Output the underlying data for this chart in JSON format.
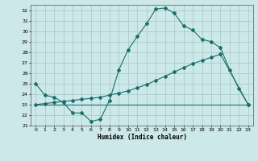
{
  "bg_color": "#cce8e8",
  "grid_color": "#aacccc",
  "line_color": "#1a6e6e",
  "x_label": "Humidex (Indice chaleur)",
  "ylim": [
    21,
    32.5
  ],
  "xlim": [
    -0.5,
    23.5
  ],
  "yticks": [
    21,
    22,
    23,
    24,
    25,
    26,
    27,
    28,
    29,
    30,
    31,
    32
  ],
  "xticks": [
    0,
    1,
    2,
    3,
    4,
    5,
    6,
    7,
    8,
    9,
    10,
    11,
    12,
    13,
    14,
    15,
    16,
    17,
    18,
    19,
    20,
    21,
    22,
    23
  ],
  "curve1_x": [
    0,
    1,
    2,
    3,
    4,
    5,
    6,
    7,
    8,
    9,
    10,
    11,
    12,
    13,
    14,
    15,
    16,
    17,
    18,
    19,
    20,
    21,
    22,
    23
  ],
  "curve1_y": [
    25.0,
    23.9,
    23.7,
    23.2,
    22.2,
    22.2,
    21.4,
    21.6,
    23.4,
    26.3,
    28.2,
    29.5,
    30.7,
    32.1,
    32.2,
    31.7,
    30.5,
    30.1,
    29.2,
    29.0,
    28.4,
    26.3,
    24.5,
    23.0
  ],
  "curve2_x": [
    0,
    1,
    2,
    3,
    4,
    5,
    6,
    7,
    8,
    9,
    10,
    11,
    12,
    13,
    14,
    15,
    16,
    17,
    18,
    19,
    20,
    23
  ],
  "curve2_y": [
    23.0,
    23.1,
    23.2,
    23.3,
    23.4,
    23.5,
    23.6,
    23.7,
    23.9,
    24.1,
    24.3,
    24.6,
    24.9,
    25.3,
    25.7,
    26.1,
    26.5,
    26.9,
    27.2,
    27.5,
    27.8,
    23.0
  ],
  "curve3_x": [
    0,
    14,
    23
  ],
  "curve3_y": [
    23.0,
    23.0,
    23.0
  ]
}
